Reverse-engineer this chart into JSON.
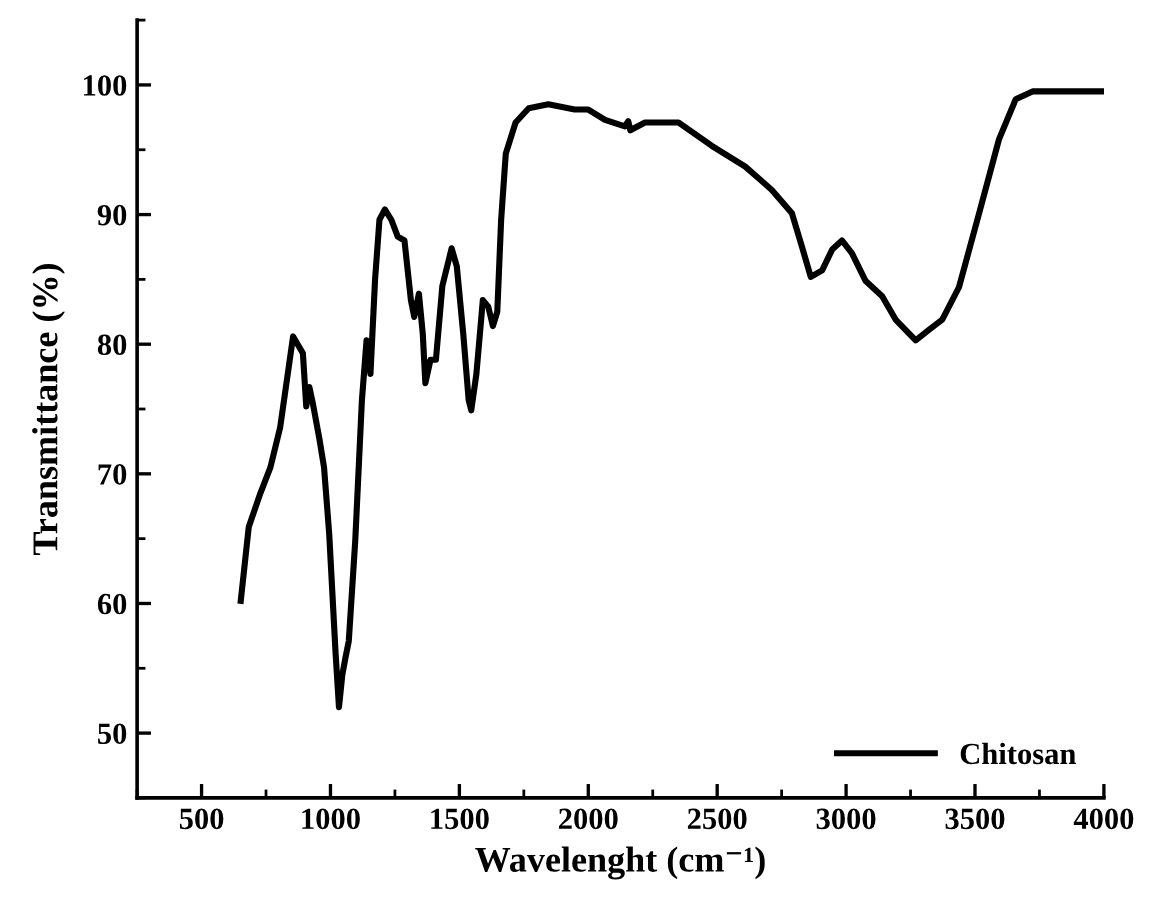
{
  "chart_data": {
    "type": "line",
    "xlabel": "Wavelenght (cm⁻¹)",
    "ylabel": "Transmittance (%)",
    "xlim": [
      250,
      4000
    ],
    "ylim": [
      45,
      105
    ],
    "xticks": [
      {
        "value": 250,
        "label": null
      },
      500,
      {
        "value": 750,
        "label": null
      },
      1000,
      {
        "value": 1250,
        "label": null
      },
      1500,
      {
        "value": 1750,
        "label": null
      },
      2000,
      {
        "value": 2250,
        "label": null
      },
      2500,
      {
        "value": 2750,
        "label": null
      },
      3000,
      {
        "value": 3250,
        "label": null
      },
      3500,
      {
        "value": 3750,
        "label": null
      },
      4000
    ],
    "yticks": [
      {
        "value": 45,
        "label": null
      },
      50,
      {
        "value": 55,
        "label": null
      },
      60,
      {
        "value": 65,
        "label": null
      },
      70,
      {
        "value": 75,
        "label": null
      },
      80,
      {
        "value": 85,
        "label": null
      },
      90,
      {
        "value": 95,
        "label": null
      },
      100,
      {
        "value": 105,
        "label": null
      }
    ],
    "grid": false,
    "legend": "bottom right",
    "marker": "none",
    "line_style": "solid",
    "series": [
      {
        "name": "Chitosan",
        "color": "#000000",
        "x": [
          652,
          683,
          728,
          767,
          805,
          855,
          893,
          906,
          918,
          931,
          957,
          975,
          995,
          1020,
          1033,
          1046,
          1058,
          1071,
          1096,
          1122,
          1140,
          1155,
          1173,
          1190,
          1211,
          1236,
          1261,
          1287,
          1312,
          1325,
          1343,
          1358,
          1368,
          1388,
          1409,
          1434,
          1470,
          1490,
          1515,
          1536,
          1546,
          1566,
          1591,
          1612,
          1630,
          1647,
          1662,
          1680,
          1718,
          1769,
          1845,
          1947,
          2000,
          2065,
          2142,
          2155,
          2163,
          2220,
          2350,
          2479,
          2609,
          2712,
          2790,
          2829,
          2863,
          2907,
          2946,
          2984,
          3023,
          3075,
          3140,
          3192,
          3270,
          3321,
          3373,
          3438,
          3516,
          3593,
          3658,
          3723,
          4000
        ],
        "values": [
          60.2,
          65.9,
          68.5,
          70.5,
          73.6,
          80.6,
          79.3,
          75.2,
          76.7,
          75.5,
          72.7,
          70.5,
          65.4,
          56.1,
          52.0,
          54.5,
          55.8,
          57.1,
          64.8,
          75.7,
          80.3,
          77.7,
          85.0,
          89.6,
          90.4,
          89.6,
          88.3,
          88.0,
          83.4,
          82.1,
          83.9,
          80.8,
          77.0,
          78.8,
          78.8,
          84.5,
          87.4,
          86.0,
          80.8,
          75.7,
          74.9,
          77.7,
          83.4,
          82.9,
          81.4,
          82.5,
          89.6,
          94.7,
          97.1,
          98.2,
          98.5,
          98.1,
          98.1,
          97.3,
          96.8,
          97.2,
          96.5,
          97.1,
          97.1,
          95.3,
          93.7,
          91.9,
          90.1,
          87.5,
          85.2,
          85.7,
          87.3,
          88.0,
          87.0,
          84.9,
          83.7,
          81.9,
          80.3,
          81.1,
          81.9,
          84.4,
          90.1,
          95.8,
          98.9,
          99.5,
          99.5
        ]
      }
    ]
  }
}
